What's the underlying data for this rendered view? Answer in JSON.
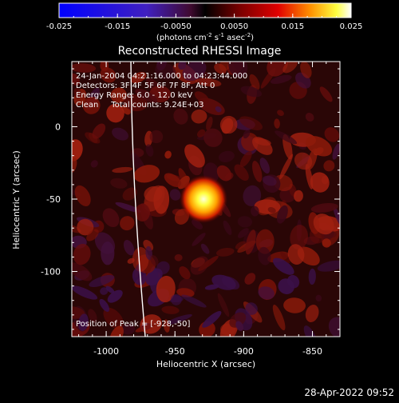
{
  "colorbar": {
    "tick_labels": [
      "-0.025",
      "-0.015",
      "-0.0050",
      "0.0050",
      "0.015",
      "0.025"
    ],
    "unit_label": "(photons cm",
    "unit_exp1": "-2",
    "unit_mid": " s",
    "unit_exp2": "-1",
    "unit_end": " asec",
    "unit_exp3": "-2",
    "unit_close": ")",
    "range": [
      -0.025,
      0.025
    ]
  },
  "title": "Reconstructed RHESSI Image",
  "info": {
    "line1": "24-Jan-2004 04:21:16.000 to 04:23:44.000",
    "line2": "Detectors: 3F 4F 5F 6F 7F 8F, Att 0",
    "line3": "Energy Range: 6.0 - 12.0 keV",
    "line4": "Clean     Total counts: 9.24E+03",
    "peak": "Position of Peak = [-928,-50]"
  },
  "axes": {
    "xlabel": "Heliocentric X (arcsec)",
    "ylabel": "Heliocentric Y (arcsec)",
    "xticks": [
      "-1000",
      "-950",
      "-900",
      "-850"
    ],
    "yticks": [
      "0",
      "-50",
      "-100"
    ],
    "xlim": [
      -1025,
      -830
    ],
    "ylim": [
      -145,
      45
    ]
  },
  "timestamp": "28-Apr-2022 09:52",
  "chart_data": {
    "type": "heatmap",
    "title": "Reconstructed RHESSI Image",
    "xlabel": "Heliocentric X (arcsec)",
    "ylabel": "Heliocentric Y (arcsec)",
    "xlim": [
      -1025,
      -830
    ],
    "ylim": [
      -145,
      45
    ],
    "peak": {
      "x": -928,
      "y": -50
    },
    "colormap_range": [
      -0.025,
      0.025
    ]
  }
}
